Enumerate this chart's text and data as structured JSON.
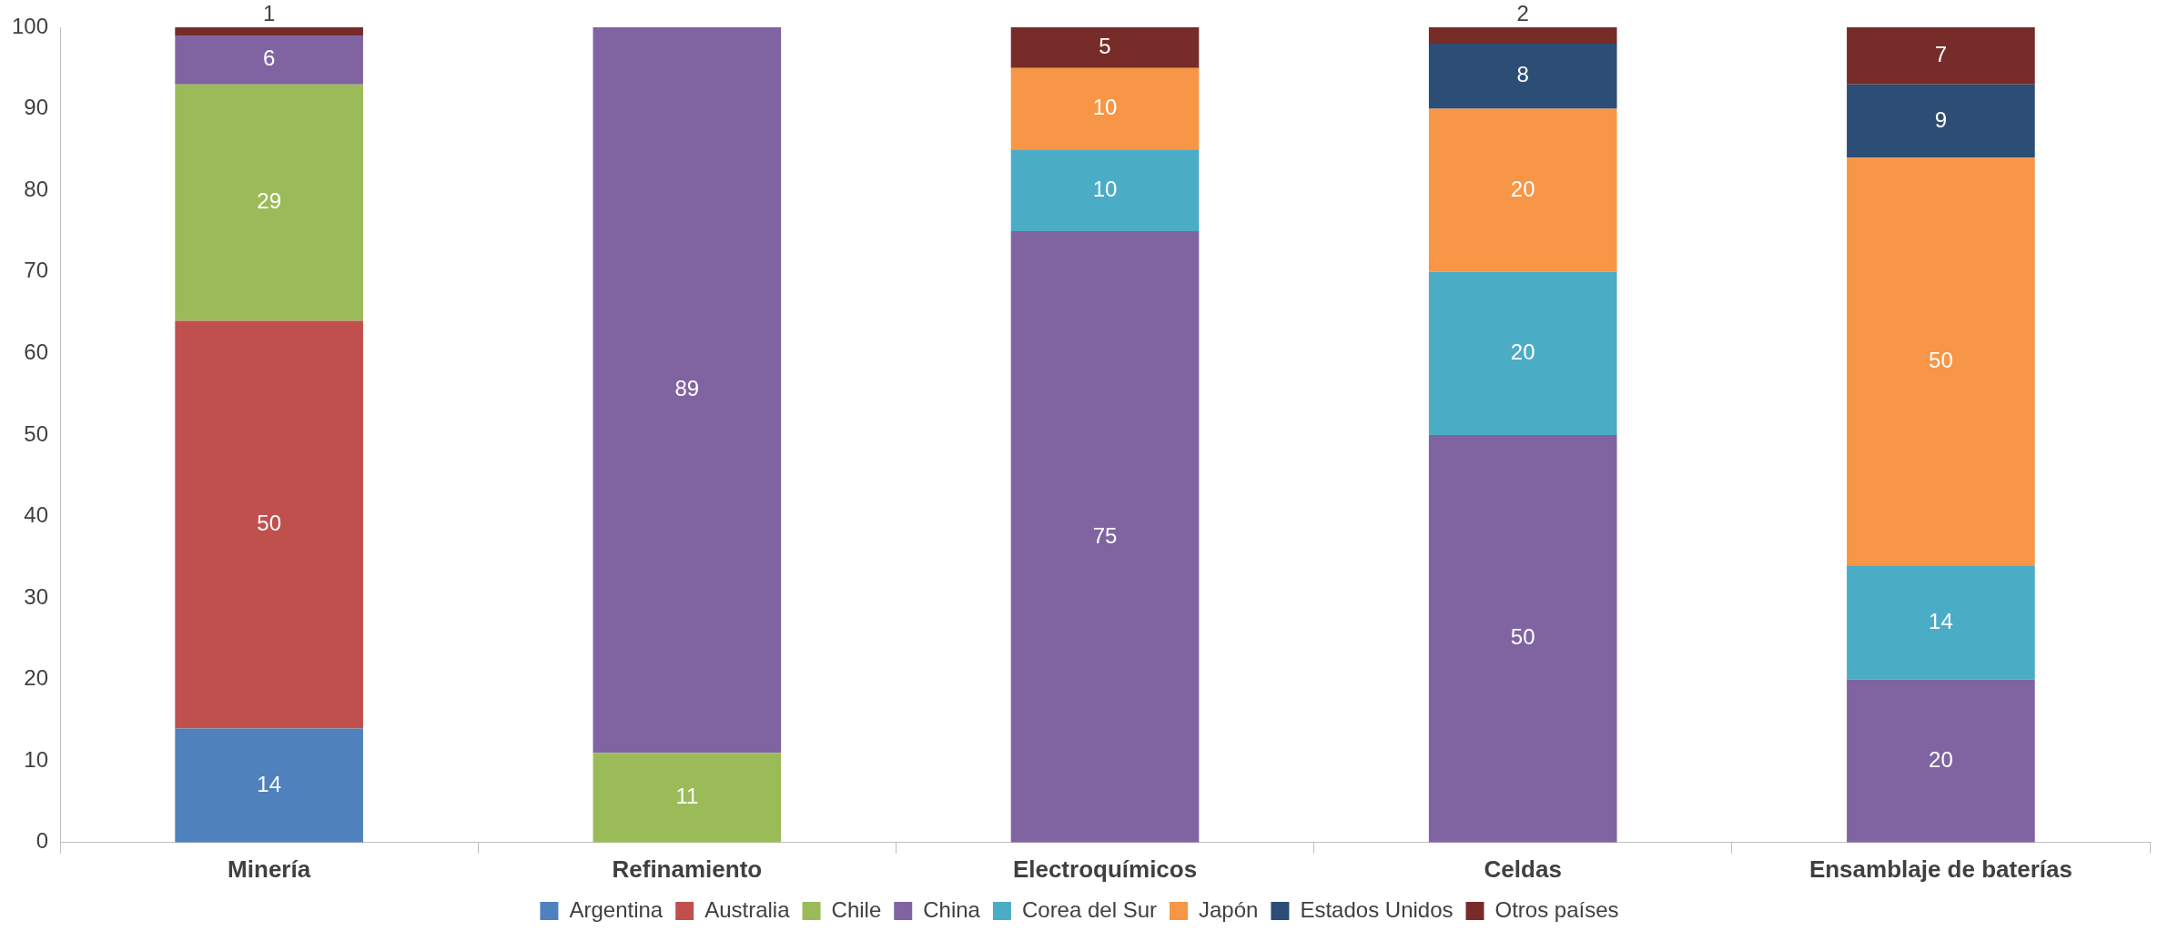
{
  "chart_data": {
    "type": "bar",
    "stacked": true,
    "categories": [
      "Minería",
      "Refinamiento",
      "Electroquímicos",
      "Celdas",
      "Ensamblaje de baterías"
    ],
    "series": [
      {
        "name": "Argentina",
        "color": "#4f81bd",
        "values": [
          14,
          null,
          null,
          null,
          null
        ]
      },
      {
        "name": "Australia",
        "color": "#c0504d",
        "values": [
          50,
          null,
          null,
          null,
          null
        ]
      },
      {
        "name": "Chile",
        "color": "#9bbb59",
        "values": [
          29,
          11,
          null,
          null,
          null
        ]
      },
      {
        "name": "China",
        "color": "#8064a2",
        "values": [
          6,
          89,
          75,
          50,
          20
        ]
      },
      {
        "name": "Corea del Sur",
        "color": "#4bacc6",
        "values": [
          null,
          null,
          10,
          20,
          14
        ]
      },
      {
        "name": "Japón",
        "color": "#f79646",
        "values": [
          null,
          null,
          10,
          20,
          50
        ]
      },
      {
        "name": "Estados Unidos",
        "color": "#2c4d75",
        "values": [
          null,
          null,
          null,
          8,
          9
        ]
      },
      {
        "name": "Otros países",
        "color": "#772c2a",
        "values": [
          1,
          null,
          5,
          2,
          7
        ]
      }
    ],
    "ylim": [
      0,
      100
    ],
    "yticks": [
      0,
      10,
      20,
      30,
      40,
      50,
      60,
      70,
      80,
      90,
      100
    ],
    "grid": false,
    "legend": "bottom",
    "data_labels": true
  }
}
